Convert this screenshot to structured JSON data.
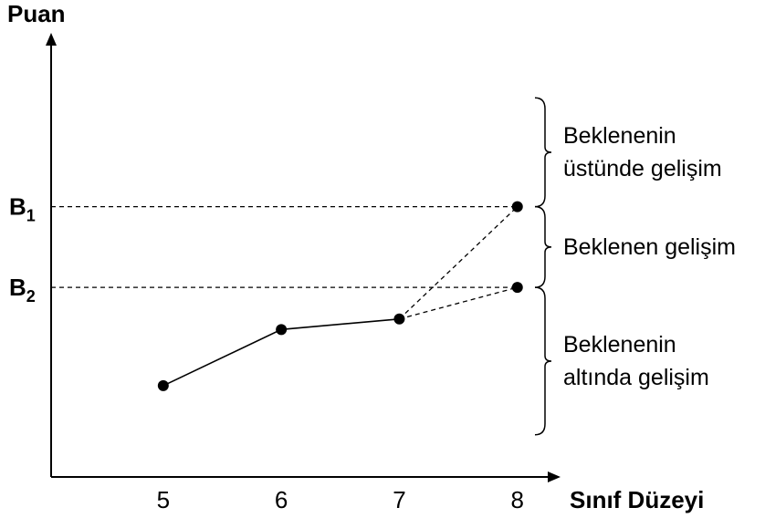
{
  "chart_data": {
    "type": "line",
    "ylabel": "Puan",
    "xlabel": "Sınıf Düzeyi",
    "x": [
      5,
      6,
      7
    ],
    "y_observed": [
      1.3,
      2.1,
      2.25
    ],
    "projections": [
      {
        "to_x": 8,
        "to_y": 3.85,
        "level": "B1"
      },
      {
        "to_x": 8,
        "to_y": 2.7,
        "level": "B2"
      }
    ],
    "ticks_x": [
      "5",
      "6",
      "7",
      "8"
    ],
    "levels": [
      {
        "main": "B",
        "sub": "1",
        "value": 3.85
      },
      {
        "main": "B",
        "sub": "2",
        "value": 2.7
      }
    ],
    "ranges": [
      {
        "lines": [
          "Beklenenin",
          "üstünde gelişim"
        ],
        "from": 3.85,
        "to": 5.4
      },
      {
        "lines": [
          "Beklenen gelişim"
        ],
        "from": 2.7,
        "to": 3.85
      },
      {
        "lines": [
          "Beklenenin",
          "altında gelişim"
        ],
        "from": 0.6,
        "to": 2.7
      }
    ],
    "xlim": [
      4.05,
      8.35
    ],
    "ylim": [
      0,
      6.3
    ]
  }
}
